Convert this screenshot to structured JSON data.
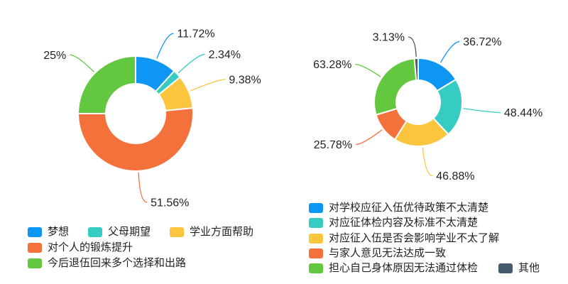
{
  "page": {
    "background": "#ffffff",
    "text_color": "#222222"
  },
  "palette": {
    "blue": "#0E96F5",
    "teal": "#36CCC3",
    "yellow": "#FBC53D",
    "orange": "#F4713C",
    "green": "#63C740",
    "dark": "#44596B"
  },
  "chart_data": [
    {
      "type": "pie",
      "subtype": "donut",
      "title": "",
      "legend_position": "bottom-left",
      "slices": [
        {
          "label": "梦想",
          "value": 11.72,
          "pct_label": "11.72%",
          "color": "#0E96F5"
        },
        {
          "label": "父母期望",
          "value": 2.34,
          "pct_label": "2.34%",
          "color": "#36CCC3"
        },
        {
          "label": "学业方面帮助",
          "value": 9.38,
          "pct_label": "9.38%",
          "color": "#FBC53D"
        },
        {
          "label": "对个人的锻炼提升",
          "value": 51.56,
          "pct_label": "51.56%",
          "color": "#F4713C"
        },
        {
          "label": "今后退伍回来多个选择和出路",
          "value": 25,
          "pct_label": "25%",
          "color": "#63C740"
        }
      ]
    },
    {
      "type": "pie",
      "subtype": "donut",
      "title": "",
      "legend_position": "bottom-right",
      "slices": [
        {
          "label": "对学校应征入伍优待政策不太清楚",
          "value": 36.72,
          "pct_label": "36.72%",
          "color": "#0E96F5"
        },
        {
          "label": "对应征体检内容及标准不太清楚",
          "value": 48.44,
          "pct_label": "48.44%",
          "color": "#36CCC3"
        },
        {
          "label": "对应征入伍是否会影响学业不太了解",
          "value": 46.88,
          "pct_label": "46.88%",
          "color": "#FBC53D"
        },
        {
          "label": "与家人意见无法达成一致",
          "value": 25.78,
          "pct_label": "25.78%",
          "color": "#F4713C"
        },
        {
          "label": "担心自己身体原因无法通过体检",
          "value": 63.28,
          "pct_label": "63.28%",
          "color": "#63C740"
        },
        {
          "label": "其他",
          "value": 3.13,
          "pct_label": "3.13%",
          "color": "#44596B"
        }
      ]
    }
  ]
}
